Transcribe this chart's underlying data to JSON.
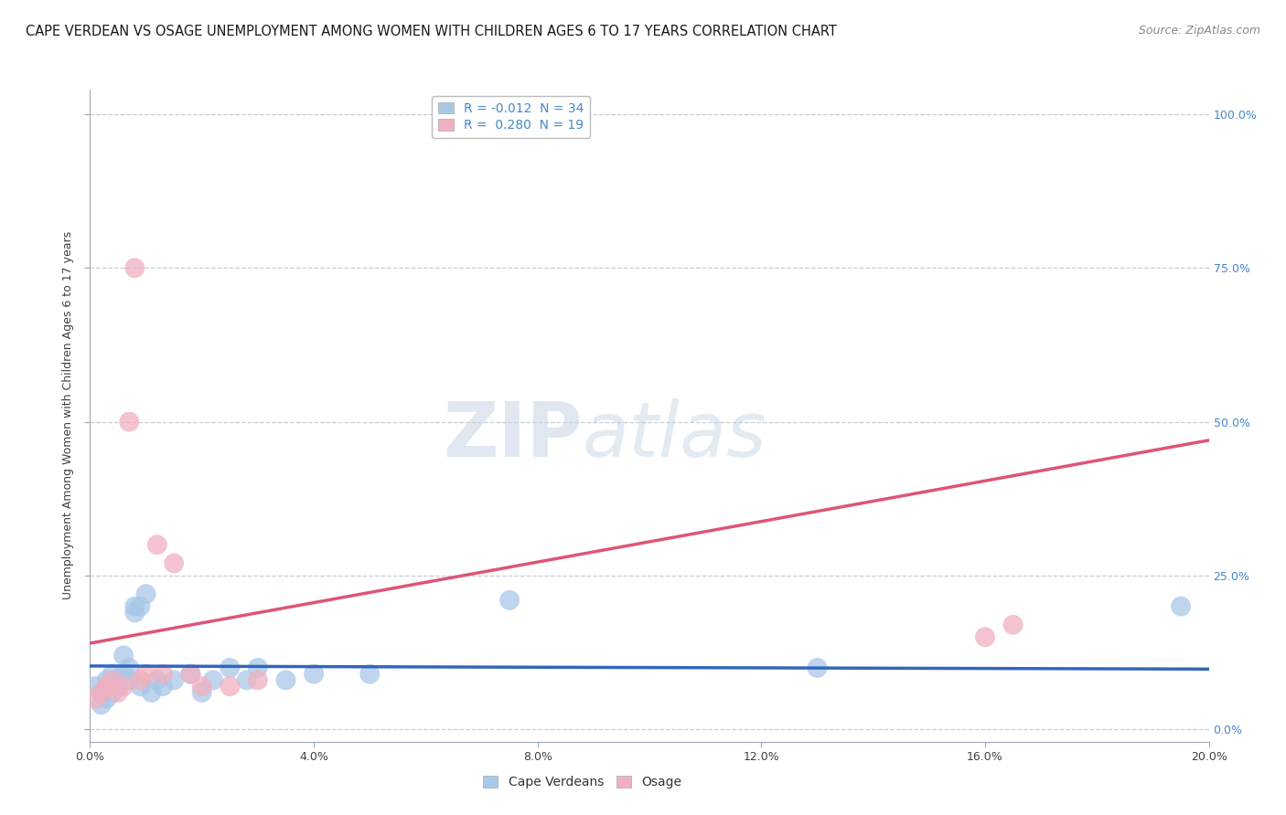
{
  "title": "CAPE VERDEAN VS OSAGE UNEMPLOYMENT AMONG WOMEN WITH CHILDREN AGES 6 TO 17 YEARS CORRELATION CHART",
  "source": "Source: ZipAtlas.com",
  "ylabel": "Unemployment Among Women with Children Ages 6 to 17 years",
  "xlim": [
    0.0,
    0.2
  ],
  "ylim": [
    -0.02,
    1.04
  ],
  "xticks": [
    0.0,
    0.04,
    0.08,
    0.12,
    0.16,
    0.2
  ],
  "xticklabels": [
    "0.0%",
    "4.0%",
    "8.0%",
    "12.0%",
    "16.0%",
    "20.0%"
  ],
  "yticks": [
    0.0,
    0.25,
    0.5,
    0.75,
    1.0
  ],
  "yticklabels": [
    "0.0%",
    "25.0%",
    "50.0%",
    "75.0%",
    "100.0%"
  ],
  "blue_scatter_x": [
    0.001,
    0.002,
    0.002,
    0.003,
    0.003,
    0.004,
    0.004,
    0.005,
    0.005,
    0.006,
    0.006,
    0.007,
    0.007,
    0.008,
    0.008,
    0.009,
    0.009,
    0.01,
    0.011,
    0.012,
    0.013,
    0.015,
    0.018,
    0.02,
    0.022,
    0.025,
    0.028,
    0.03,
    0.035,
    0.04,
    0.05,
    0.075,
    0.13,
    0.195
  ],
  "blue_scatter_y": [
    0.07,
    0.06,
    0.04,
    0.08,
    0.05,
    0.09,
    0.06,
    0.08,
    0.07,
    0.12,
    0.09,
    0.1,
    0.08,
    0.2,
    0.19,
    0.2,
    0.07,
    0.22,
    0.06,
    0.08,
    0.07,
    0.08,
    0.09,
    0.06,
    0.08,
    0.1,
    0.08,
    0.1,
    0.08,
    0.09,
    0.09,
    0.21,
    0.1,
    0.2
  ],
  "pink_scatter_x": [
    0.001,
    0.002,
    0.003,
    0.004,
    0.005,
    0.006,
    0.007,
    0.008,
    0.009,
    0.01,
    0.012,
    0.013,
    0.015,
    0.018,
    0.02,
    0.025,
    0.03,
    0.16,
    0.165
  ],
  "pink_scatter_y": [
    0.05,
    0.06,
    0.07,
    0.08,
    0.06,
    0.07,
    0.5,
    0.75,
    0.08,
    0.09,
    0.3,
    0.09,
    0.27,
    0.09,
    0.07,
    0.07,
    0.08,
    0.15,
    0.17
  ],
  "blue_R": -0.012,
  "blue_N": 34,
  "pink_R": 0.28,
  "pink_N": 19,
  "blue_trend_x": [
    0.0,
    0.2
  ],
  "blue_trend_y": [
    0.103,
    0.098
  ],
  "pink_trend_x": [
    0.0,
    0.2
  ],
  "pink_trend_y": [
    0.14,
    0.47
  ],
  "blue_scatter_color": "#a8c8e8",
  "blue_line_color": "#3366bb",
  "pink_scatter_color": "#f0b0c0",
  "pink_line_color": "#dd5577",
  "watermark_zip": "ZIP",
  "watermark_atlas": "atlas",
  "watermark_color": "#ccd8e8",
  "grid_color": "#c8ccd8",
  "background_color": "#ffffff",
  "title_fontsize": 10.5,
  "source_fontsize": 9,
  "axis_label_fontsize": 9,
  "tick_fontsize": 9,
  "legend_fontsize": 10,
  "right_tick_color": "#4488cc",
  "left_tick_color": "#404040"
}
